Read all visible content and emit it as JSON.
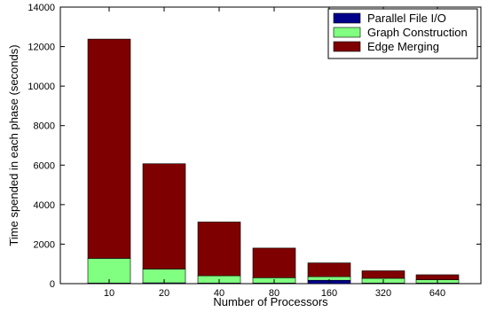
{
  "chart_data": {
    "type": "bar",
    "stacked": true,
    "xlabel": "Number of Processors",
    "ylabel": "Time spended in each phase (seconds)",
    "categories": [
      "10",
      "20",
      "40",
      "80",
      "160",
      "320",
      "640"
    ],
    "ylim": [
      0,
      14000
    ],
    "yticks": [
      0,
      2000,
      4000,
      6000,
      8000,
      10000,
      12000,
      14000
    ],
    "grid": false,
    "legend_position": "top-right",
    "series": [
      {
        "name": "Parallel File I/O",
        "color": "#00008b",
        "values": [
          30,
          40,
          30,
          30,
          170,
          30,
          30
        ]
      },
      {
        "name": "Graph Construction",
        "color": "#80ff80",
        "values": [
          1250,
          700,
          370,
          270,
          180,
          240,
          170
        ]
      },
      {
        "name": "Edge Merging",
        "color": "#7f0000",
        "values": [
          11100,
          5330,
          2720,
          1500,
          700,
          380,
          250
        ]
      }
    ]
  }
}
